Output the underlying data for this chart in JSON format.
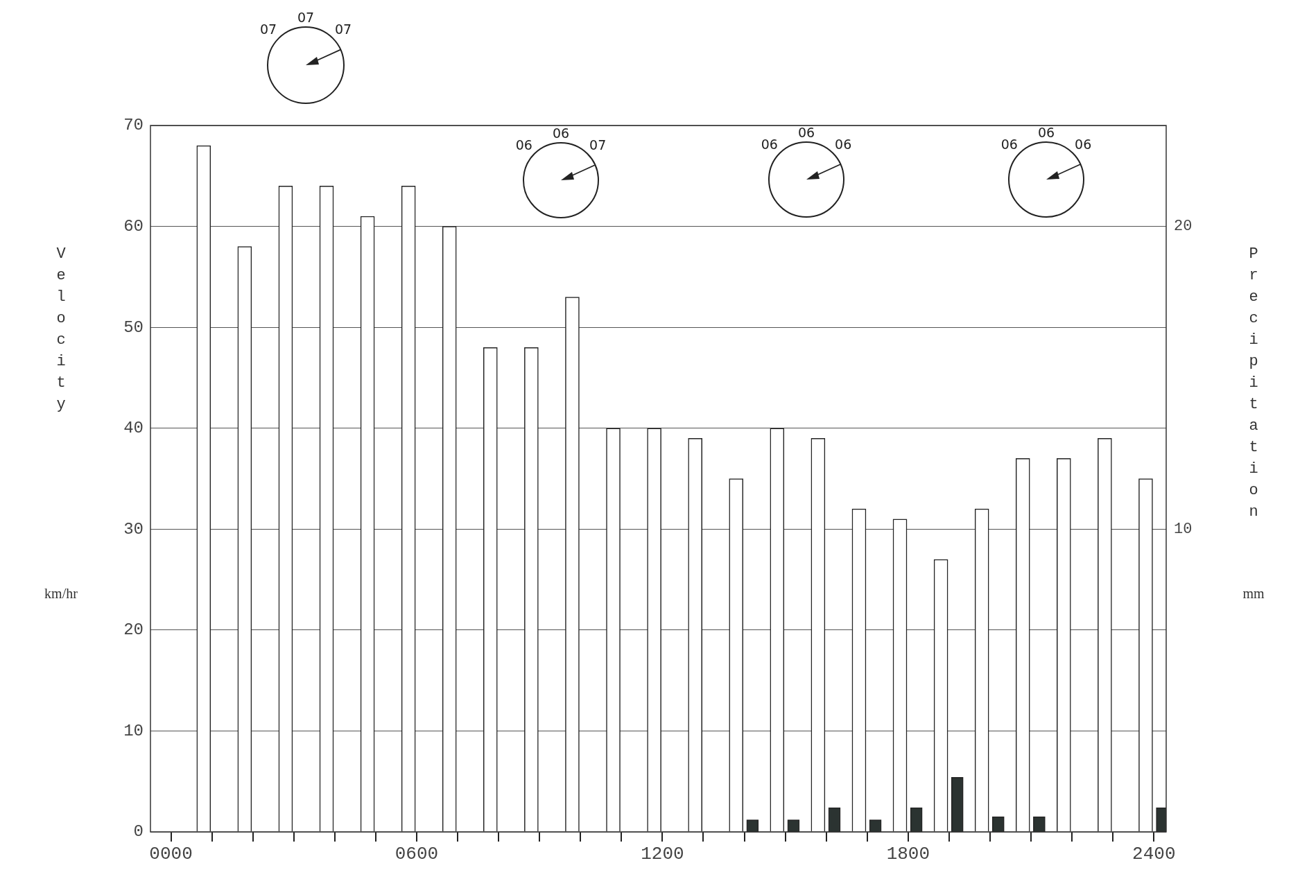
{
  "chart_data": {
    "type": "bar",
    "ylabel": "Velocity",
    "y2label": "Precipitation",
    "xlim": [
      -50,
      2430
    ],
    "xticks": [
      {
        "value": 0,
        "label": "0000"
      },
      {
        "value": 100,
        "label": null
      },
      {
        "value": 200,
        "label": null
      },
      {
        "value": 300,
        "label": null
      },
      {
        "value": 400,
        "label": null
      },
      {
        "value": 500,
        "label": null
      },
      {
        "value": 600,
        "label": "0600"
      },
      {
        "value": 700,
        "label": null
      },
      {
        "value": 800,
        "label": null
      },
      {
        "value": 900,
        "label": null
      },
      {
        "value": 1000,
        "label": null
      },
      {
        "value": 1100,
        "label": null
      },
      {
        "value": 1200,
        "label": "1200"
      },
      {
        "value": 1300,
        "label": null
      },
      {
        "value": 1400,
        "label": null
      },
      {
        "value": 1500,
        "label": null
      },
      {
        "value": 1600,
        "label": null
      },
      {
        "value": 1700,
        "label": null
      },
      {
        "value": 1800,
        "label": "1800"
      },
      {
        "value": 1900,
        "label": null
      },
      {
        "value": 2000,
        "label": null
      },
      {
        "value": 2100,
        "label": null
      },
      {
        "value": 2200,
        "label": null
      },
      {
        "value": 2300,
        "label": null
      },
      {
        "value": 2400,
        "label": "2400"
      }
    ],
    "ylim": [
      0,
      70
    ],
    "yticks": [
      0,
      10,
      20,
      30,
      40,
      50,
      60,
      70
    ],
    "y2lim": [
      0,
      23.33
    ],
    "y2ticks": [
      10,
      20
    ],
    "grid": "y",
    "legend": false,
    "series": [
      {
        "color": "#ffffff",
        "x": [
          80,
          180,
          280,
          380,
          480,
          580,
          680,
          780,
          880,
          980,
          1080,
          1180,
          1280,
          1380,
          1480,
          1580,
          1680,
          1780,
          1880,
          1980,
          2080,
          2180,
          2280,
          2380
        ],
        "values": [
          68,
          58,
          64,
          64,
          61,
          64,
          60,
          48,
          48,
          53,
          40,
          40,
          39,
          35,
          40,
          39,
          32,
          31,
          27,
          32,
          37,
          37,
          39,
          35
        ]
      },
      {
        "color": "#2b3331",
        "axis": "y2",
        "x": [
          1420,
          1520,
          1620,
          1720,
          1820,
          1920,
          2020,
          2120,
          2420
        ],
        "values": [
          0.4,
          0.4,
          0.8,
          0.4,
          0.8,
          1.8,
          0.5,
          0.5,
          0.8
        ]
      }
    ],
    "annotations": [
      "07",
      "07",
      "07",
      "06",
      "06",
      "07",
      "06",
      "06",
      "06",
      "06",
      "06",
      "06",
      "km/hr",
      "mm"
    ]
  }
}
